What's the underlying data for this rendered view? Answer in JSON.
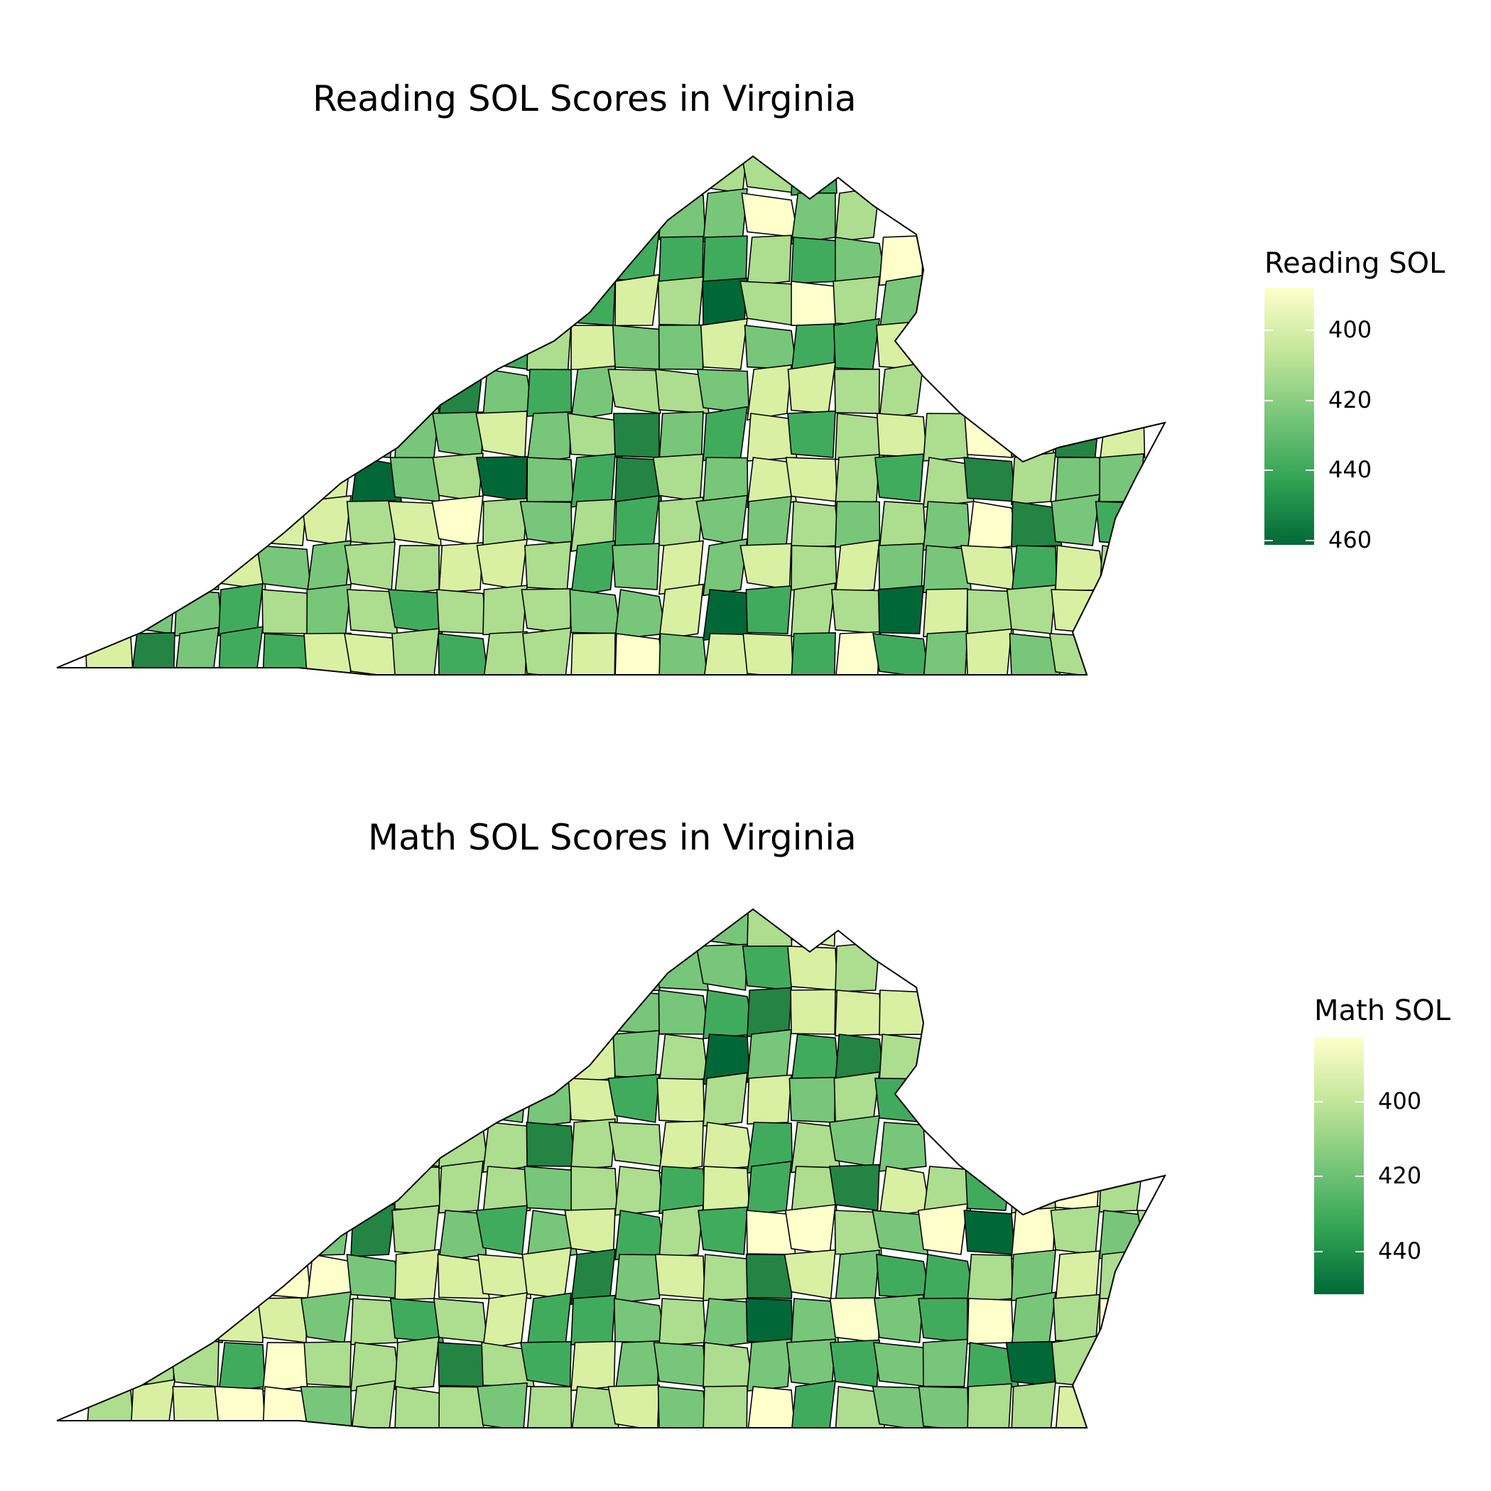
{
  "maps": [
    {
      "id": "reading",
      "title": "Reading SOL Scores in Virginia",
      "legend": {
        "title": "Reading SOL",
        "ticks": [
          "400",
          "420",
          "440",
          "460"
        ],
        "colors": [
          "#ffffcc",
          "#c2e699",
          "#78c679",
          "#31a354",
          "#006837"
        ]
      }
    },
    {
      "id": "math",
      "title": "Math SOL Scores in Virginia",
      "legend": {
        "title": "Math SOL",
        "ticks": [
          "400",
          "420",
          "440"
        ],
        "colors": [
          "#ffffcc",
          "#c2e699",
          "#78c679",
          "#31a354",
          "#006837"
        ]
      }
    }
  ],
  "palette": {
    "lightest": "#ffffcc",
    "light": "#d9f0a3",
    "mid_light": "#addd8e",
    "mid": "#78c679",
    "mid_dark": "#41ab5d",
    "dark": "#238443",
    "darkest": "#006837"
  }
}
